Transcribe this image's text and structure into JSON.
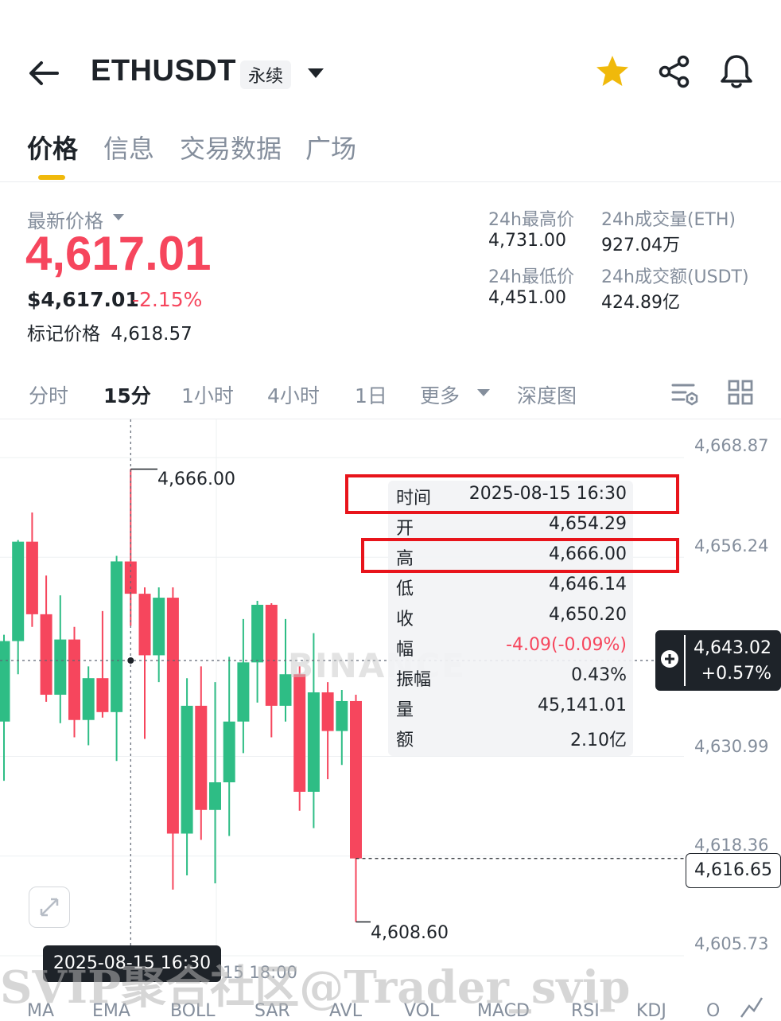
{
  "header": {
    "symbol": "ETHUSDT",
    "contract_type": "永续"
  },
  "tabs": [
    {
      "label": "价格",
      "active": true
    },
    {
      "label": "信息",
      "active": false
    },
    {
      "label": "交易数据",
      "active": false
    },
    {
      "label": "广场",
      "active": false
    }
  ],
  "price": {
    "label": "最新价格",
    "last": "4,617.01",
    "usd": "$4,617.01",
    "change_pct": "-2.15%",
    "mark_label": "标记价格",
    "mark_value": "4,618.57"
  },
  "stats": {
    "high_label": "24h最高价",
    "high": "4,731.00",
    "low_label": "24h最低价",
    "low": "4,451.00",
    "vol_label": "24h成交量(ETH)",
    "vol": "927.04万",
    "amt_label": "24h成交额(USDT)",
    "amt": "424.89亿"
  },
  "timeframes": {
    "t0": "分时",
    "t1": "15分",
    "t2": "1小时",
    "t3": "4小时",
    "t4": "1日",
    "more": "更多",
    "depth": "深度图",
    "active": "15分"
  },
  "chart": {
    "y_ticks": [
      "4,668.87",
      "4,656.24",
      "4,630.99",
      "4,618.36",
      "4,605.73"
    ],
    "high_marker": "4,666.00",
    "low_marker": "4,608.60",
    "current_price": "4,643.02",
    "current_change": "+0.57%",
    "last_price": "4,616.65",
    "crosshair_time": "2025-08-15 16:30",
    "x_tick": "15 18:00",
    "watermark": "BINANCE"
  },
  "tooltip": {
    "time_label": "时间",
    "time": "2025-08-15 16:30",
    "open_label": "开",
    "open": "4,654.29",
    "high_label": "高",
    "high": "4,666.00",
    "low_label": "低",
    "low": "4,646.14",
    "close_label": "收",
    "close": "4,650.20",
    "chg_label": "幅",
    "chg": "-4.09(-0.09%)",
    "amp_label": "振幅",
    "amp": "0.43%",
    "vol_label": "量",
    "vol": "45,141.01",
    "amt_label": "额",
    "amt": "2.10亿"
  },
  "indicators": [
    "MA",
    "EMA",
    "BOLL",
    "SAR",
    "AVL",
    "VOL",
    "MACD",
    "RSI",
    "KDJ",
    "O"
  ],
  "overlay_watermark": "SVIP聚合社区@Trader_svip",
  "colors": {
    "up": "#2ebd85",
    "down": "#f6465d",
    "accent": "#f0b90b",
    "highlight": "#e8141b"
  },
  "chart_data": {
    "type": "candlestick",
    "interval": "15分",
    "y_ticks": [
      4668.87,
      4656.24,
      4630.99,
      4618.36,
      4605.73
    ],
    "candles": [
      {
        "o": 4634.0,
        "h": 4645.0,
        "l": 4626.5,
        "c": 4644.2
      },
      {
        "o": 4644.2,
        "h": 4657.0,
        "l": 4640.0,
        "c": 4656.8
      },
      {
        "o": 4656.8,
        "h": 4660.5,
        "l": 4646.0,
        "c": 4647.6
      },
      {
        "o": 4647.6,
        "h": 4652.5,
        "l": 4636.5,
        "c": 4637.4
      },
      {
        "o": 4637.4,
        "h": 4650.0,
        "l": 4633.8,
        "c": 4644.4
      },
      {
        "o": 4644.4,
        "h": 4646.0,
        "l": 4632.0,
        "c": 4634.2
      },
      {
        "o": 4634.2,
        "h": 4641.0,
        "l": 4631.0,
        "c": 4639.5
      },
      {
        "o": 4639.5,
        "h": 4648.0,
        "l": 4634.5,
        "c": 4635.2
      },
      {
        "o": 4635.2,
        "h": 4655.0,
        "l": 4629.0,
        "c": 4654.3
      },
      {
        "o": 4654.29,
        "h": 4666.0,
        "l": 4646.14,
        "c": 4650.2
      },
      {
        "o": 4650.2,
        "h": 4651.0,
        "l": 4631.8,
        "c": 4642.4
      },
      {
        "o": 4642.4,
        "h": 4651.0,
        "l": 4639.0,
        "c": 4649.7
      },
      {
        "o": 4649.7,
        "h": 4651.0,
        "l": 4612.7,
        "c": 4619.8
      },
      {
        "o": 4619.8,
        "h": 4639.5,
        "l": 4614.5,
        "c": 4636.0
      },
      {
        "o": 4636.0,
        "h": 4641.0,
        "l": 4619.0,
        "c": 4622.8
      },
      {
        "o": 4622.8,
        "h": 4639.0,
        "l": 4613.5,
        "c": 4626.3
      },
      {
        "o": 4626.3,
        "h": 4642.2,
        "l": 4619.5,
        "c": 4634.0
      },
      {
        "o": 4634.0,
        "h": 4647.0,
        "l": 4630.0,
        "c": 4641.5
      },
      {
        "o": 4641.5,
        "h": 4649.3,
        "l": 4636.4,
        "c": 4648.8
      },
      {
        "o": 4648.8,
        "h": 4649.0,
        "l": 4632.0,
        "c": 4636.0
      },
      {
        "o": 4636.0,
        "h": 4647.0,
        "l": 4634.0,
        "c": 4640.0
      },
      {
        "o": 4640.0,
        "h": 4641.0,
        "l": 4622.7,
        "c": 4625.1
      },
      {
        "o": 4625.1,
        "h": 4645.2,
        "l": 4620.5,
        "c": 4637.7
      },
      {
        "o": 4637.7,
        "h": 4639.0,
        "l": 4626.7,
        "c": 4632.8
      },
      {
        "o": 4632.8,
        "h": 4638.0,
        "l": 4628.5,
        "c": 4636.6
      },
      {
        "o": 4636.6,
        "h": 4637.4,
        "l": 4608.6,
        "c": 4616.65
      }
    ]
  }
}
